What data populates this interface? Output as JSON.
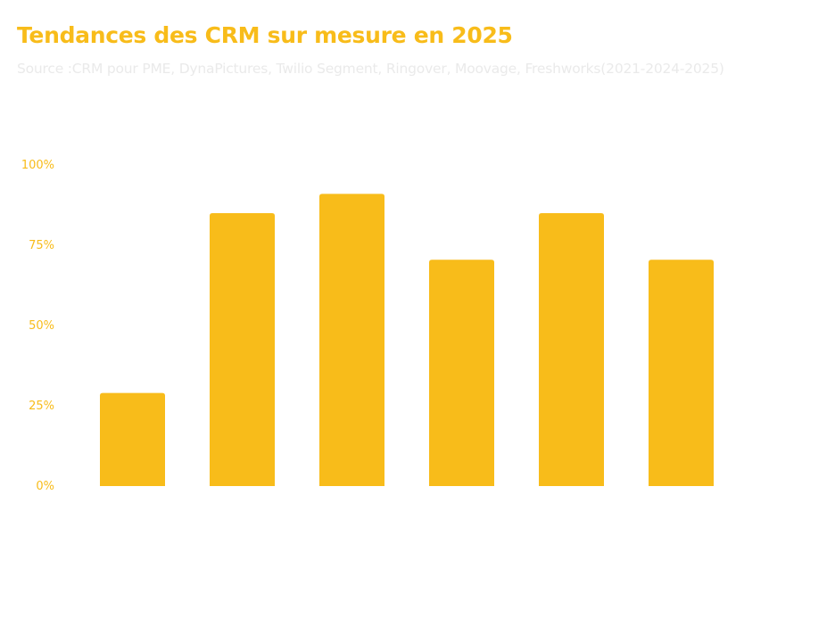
{
  "colors": {
    "accent": "#F8BC1A",
    "subtitle": "#EAEAEA",
    "background": "#FFFFFF"
  },
  "chart_data": {
    "type": "bar",
    "title": "Tendances des CRM sur mesure en 2025",
    "subtitle": "Source :CRM pour PME, DynaPictures, Twilio Segment, Ringover, Moovage, Freshworks(2021-2024-2025)",
    "xlabel": "",
    "ylabel": "",
    "categories": [
      "",
      "",
      "",
      "",
      "",
      ""
    ],
    "values": [
      29,
      85,
      91,
      70.5,
      85,
      70.5
    ],
    "ylim": [
      0,
      100
    ],
    "yticks": [
      0,
      25,
      50,
      75,
      100
    ],
    "ytick_labels": [
      "0%",
      "25%",
      "50%",
      "75%",
      "100%"
    ],
    "grid": false,
    "legend": "none"
  }
}
